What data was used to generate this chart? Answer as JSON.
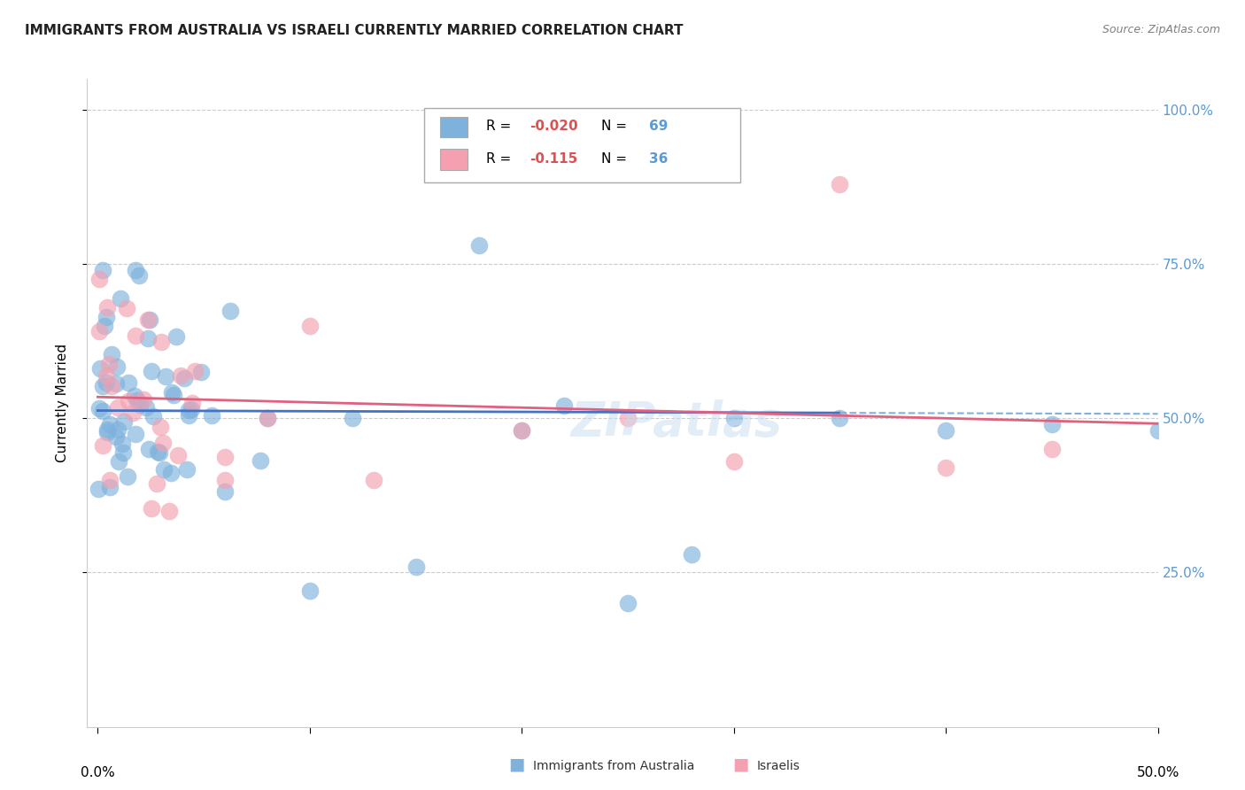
{
  "title": "IMMIGRANTS FROM AUSTRALIA VS ISRAELI CURRENTLY MARRIED CORRELATION CHART",
  "source": "Source: ZipAtlas.com",
  "ylabel": "Currently Married",
  "xlim": [
    0.0,
    0.5
  ],
  "ylim": [
    0.0,
    1.05
  ],
  "color_blue": "#7EB2DD",
  "color_pink": "#F4A0B0",
  "line_blue": "#4472C4",
  "line_pink": "#E06080",
  "line_blue_dashed": "#7EB2DD",
  "watermark": "ZIPatlas",
  "r1": "-0.020",
  "n1": "69",
  "r2": "-0.115",
  "n2": "36"
}
